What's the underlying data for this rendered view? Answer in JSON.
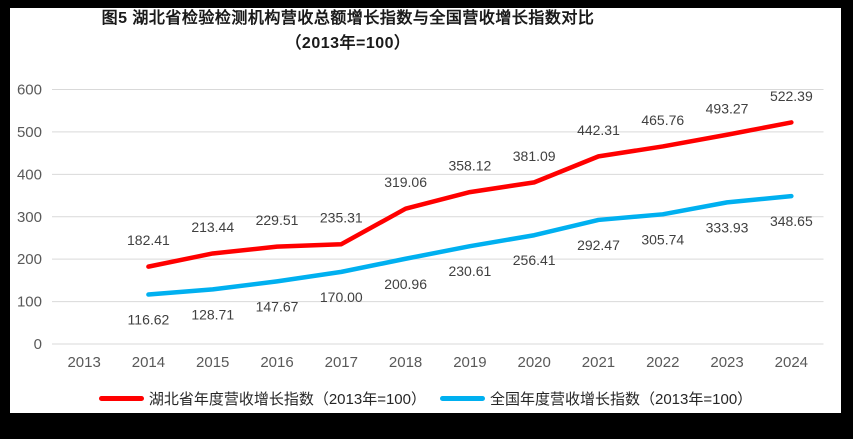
{
  "title": {
    "line1": "图5 湖北省检验检测机构营收总额增长指数与全国营收增长指数对比",
    "line2": "（2013年=100）"
  },
  "chart_data": {
    "type": "line",
    "categories": [
      "2013",
      "2014",
      "2015",
      "2016",
      "2017",
      "2018",
      "2019",
      "2020",
      "2021",
      "2022",
      "2023",
      "2024"
    ],
    "series": [
      {
        "key": "hubei",
        "name": "湖北省年度营收增长指数（2013年=100）",
        "color": "#FF0000",
        "label_position": "above",
        "values": [
          null,
          182.41,
          213.44,
          229.51,
          235.31,
          319.06,
          358.12,
          381.09,
          442.31,
          465.76,
          493.27,
          522.39
        ]
      },
      {
        "key": "national",
        "name": "全国年度营收增长指数（2013年=100）",
        "color": "#00B0F0",
        "label_position": "below",
        "values": [
          null,
          116.62,
          128.71,
          147.67,
          170.0,
          200.96,
          230.61,
          256.41,
          292.47,
          305.74,
          333.93,
          348.65
        ]
      }
    ],
    "ylim": [
      0,
      600
    ],
    "ytick_step": 100,
    "value_decimals": 2,
    "grid": true,
    "legend_position": "bottom"
  },
  "colors": {
    "page_background": "#000000",
    "chart_background": "#FFFFFF",
    "gridline": "#D9D9D9",
    "tick_label": "#595959",
    "data_label": "#404040",
    "title_text": "#1A1A1A"
  }
}
